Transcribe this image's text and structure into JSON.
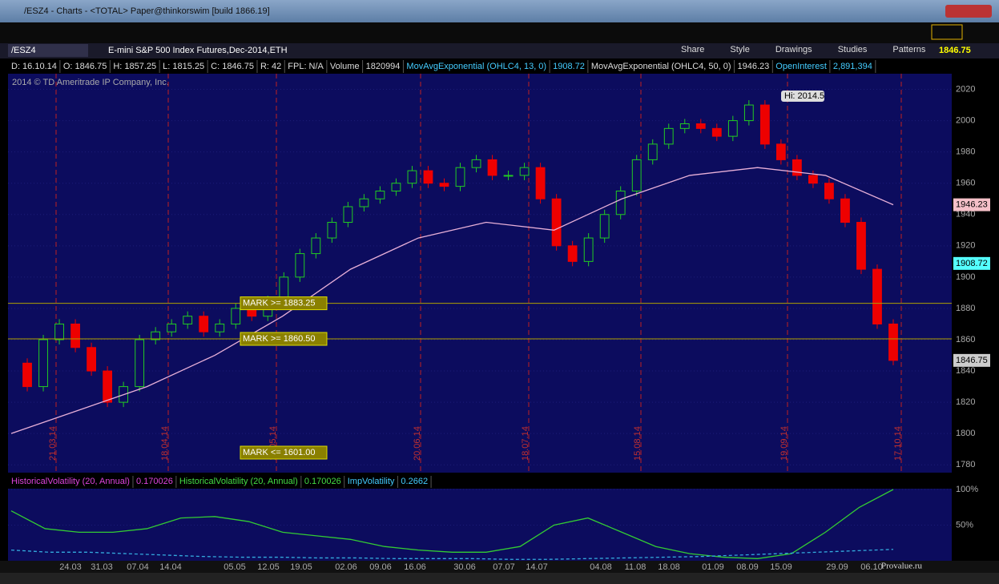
{
  "window": {
    "title": "/ESZ4 - Charts - <TOTAL> Paper@thinkorswim [build 1866.19]"
  },
  "toolbar": {
    "items": [
      "Share",
      "Style",
      "Drawings",
      "Studies",
      "Patterns"
    ],
    "last": "1846.75"
  },
  "symbol": {
    "tab": "/ESZ4",
    "description": "E-mini S&P 500 Index Futures,Dec-2014,ETH"
  },
  "info_bar": [
    "D: 16.10.14",
    "O: 1846.75",
    "H: 1857.25",
    "L: 1815.25",
    "C: 1846.75",
    "R: 42",
    "FPL: N/A",
    "Volume",
    "1820994",
    "MovAvgExponential (OHLC4, 13, 0)",
    "1908.72",
    "MovAvgExponential (OHLC4, 50, 0)",
    "1946.23",
    "OpenInterest",
    "2,891,394"
  ],
  "copyright": "2014 © TD Ameritrade IP Company, Inc.",
  "chart_data": {
    "type": "candlestick",
    "closes": [
      1845,
      1830,
      1860,
      1870,
      1855,
      1840,
      1820,
      1830,
      1860,
      1865,
      1870,
      1875,
      1865,
      1870,
      1880,
      1875,
      1885,
      1900,
      1915,
      1925,
      1935,
      1945,
      1950,
      1955,
      1960,
      1968,
      1960,
      1958,
      1970,
      1975,
      1965,
      1965,
      1970,
      1950,
      1920,
      1910,
      1925,
      1940,
      1955,
      1975,
      1985,
      1995,
      1998,
      1995,
      1990,
      2000,
      2010,
      1985,
      1975,
      1965,
      1960,
      1950,
      1935,
      1905,
      1870,
      1846.75
    ],
    "ema50": [
      1800,
      1815,
      1830,
      1850,
      1875,
      1905,
      1925,
      1935,
      1930,
      1950,
      1965,
      1970,
      1965,
      1946.23
    ],
    "ylim": [
      1775,
      2030
    ],
    "yticks": [
      1780,
      1800,
      1820,
      1840,
      1860,
      1880,
      1900,
      1920,
      1940,
      1960,
      1980,
      2000,
      2020
    ],
    "price_flags": [
      {
        "label": "1946.23",
        "value": 1946.23
      },
      {
        "label": "1908.72",
        "value": 1908.72
      },
      {
        "label": "1846.75",
        "value": 1846.75
      }
    ],
    "high_label": "Hi: 2014.5",
    "alerts": [
      {
        "label": "MARK >= 1883.25",
        "level": 1883.25
      },
      {
        "label": "MARK >= 1860.50",
        "level": 1860.5
      },
      {
        "label": "MARK <= 1601.00",
        "level": 1601
      }
    ],
    "expirations": [
      "21.03.14",
      "18.04.14",
      "16.05.14",
      "20.06.14",
      "18.07.14",
      "15.08.14",
      "19.09.14",
      "17.10.14"
    ],
    "dates": [
      "24.03",
      "31.03",
      "07.04",
      "14.04",
      "05.05",
      "12.05",
      "19.05",
      "02.06",
      "09.06",
      "16.06",
      "30.06",
      "07.07",
      "14.07",
      "04.08",
      "11.08",
      "18.08",
      "01.09",
      "08.09",
      "15.09",
      "29.09",
      "06.10"
    ]
  },
  "lower_panel": {
    "header": [
      "HistoricalVolatility (20, Annual)",
      "0.170026",
      "HistoricalVolatility (20, Annual)",
      "0.170026",
      "ImpVolatility",
      "0.2662"
    ],
    "hv": [
      70,
      45,
      40,
      40,
      45,
      60,
      62,
      55,
      40,
      35,
      30,
      20,
      15,
      12,
      12,
      20,
      50,
      60,
      40,
      20,
      10,
      5,
      3,
      10,
      40,
      75,
      100
    ],
    "iv": [
      15,
      12,
      12,
      10,
      8,
      6,
      5,
      5,
      4,
      4,
      3,
      3,
      3,
      2,
      2,
      3,
      4,
      5,
      6,
      8,
      10,
      12,
      14,
      16
    ],
    "ylim": [
      0,
      100
    ],
    "yticks": [
      {
        "value": 50,
        "label": "50%"
      },
      {
        "value": 100,
        "label": "100%"
      }
    ]
  },
  "watermark": "Provalue.ru"
}
